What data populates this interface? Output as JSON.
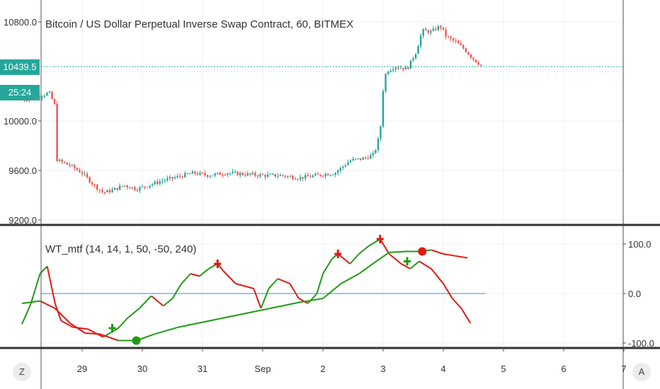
{
  "symbol_title": "Bitcoin / US Dollar Perpetual Inverse Swap Contract, 60, BITMEX",
  "indicator_title": "WT_mtf (14, 14, 1, 50, -50, 240)",
  "last_price_label": "10439.5",
  "countdown_label": "25:24",
  "corner_left_label": "Z",
  "corner_right_label": "A",
  "colors": {
    "up": "#26a69a",
    "down": "#ef5350",
    "wt_green": "#1e9b14",
    "wt_red": "#e01a14",
    "zero_line": "#90c8f0",
    "badge": "#26a69a"
  },
  "chart_data": [
    {
      "type": "candlestick",
      "title": "Bitcoin / US Dollar Perpetual Inverse Swap Contract, 60, BITMEX",
      "y_ticks": [
        "10800.0",
        "10000.0",
        "9600.0",
        "9200.0"
      ],
      "y_range": [
        9200,
        10800
      ],
      "x_ticks": [
        "29",
        "30",
        "31",
        "Sep",
        "2",
        "3",
        "4",
        "5",
        "6",
        "7"
      ],
      "last_price": 10439.5,
      "close_path": [
        [
          28.0,
          10170
        ],
        [
          28.3,
          10200
        ],
        [
          28.45,
          10230
        ],
        [
          28.55,
          10120
        ],
        [
          28.56,
          9700
        ],
        [
          28.6,
          9680
        ],
        [
          28.8,
          9640
        ],
        [
          29.0,
          9580
        ],
        [
          29.2,
          9480
        ],
        [
          29.35,
          9420
        ],
        [
          29.5,
          9440
        ],
        [
          29.7,
          9480
        ],
        [
          29.9,
          9450
        ],
        [
          30.1,
          9480
        ],
        [
          30.35,
          9520
        ],
        [
          30.6,
          9550
        ],
        [
          30.85,
          9580
        ],
        [
          31.1,
          9560
        ],
        [
          31.4,
          9580
        ],
        [
          31.7,
          9570
        ],
        [
          32.0,
          9560
        ],
        [
          32.3,
          9560
        ],
        [
          32.6,
          9540
        ],
        [
          32.9,
          9560
        ],
        [
          33.2,
          9580
        ],
        [
          33.45,
          9680
        ],
        [
          33.7,
          9700
        ],
        [
          33.85,
          9730
        ],
        [
          33.95,
          9900
        ],
        [
          34.0,
          10250
        ],
        [
          34.05,
          10400
        ],
        [
          34.2,
          10440
        ],
        [
          34.4,
          10420
        ],
        [
          34.55,
          10560
        ],
        [
          34.65,
          10730
        ],
        [
          34.8,
          10720
        ],
        [
          34.95,
          10770
        ],
        [
          35.05,
          10680
        ],
        [
          35.2,
          10640
        ],
        [
          35.35,
          10580
        ],
        [
          35.5,
          10500
        ],
        [
          35.65,
          10440
        ]
      ]
    },
    {
      "type": "line",
      "title": "WT_mtf (14, 14, 1, 50, -50, 240)",
      "y_ticks": [
        "100.0",
        "0.0",
        "-100.0"
      ],
      "y_range": [
        -100,
        100
      ],
      "reference_line": 0,
      "series": [
        {
          "color": "green/red",
          "points": [
            [
              28.0,
              -62
            ],
            [
              28.15,
              -20
            ],
            [
              28.3,
              40
            ],
            [
              28.42,
              55
            ],
            [
              28.55,
              -20
            ],
            [
              28.65,
              -55
            ],
            [
              28.85,
              -68
            ],
            [
              29.1,
              -72
            ],
            [
              29.35,
              -88
            ],
            [
              29.6,
              -70
            ],
            [
              29.75,
              -50
            ],
            [
              29.95,
              -30
            ],
            [
              30.15,
              -5
            ],
            [
              30.35,
              -25
            ],
            [
              30.5,
              -10
            ],
            [
              30.65,
              20
            ],
            [
              30.8,
              40
            ],
            [
              30.95,
              35
            ],
            [
              31.1,
              50
            ],
            [
              31.25,
              60
            ],
            [
              31.35,
              45
            ],
            [
              31.55,
              20
            ],
            [
              31.7,
              15
            ],
            [
              31.85,
              10
            ],
            [
              31.97,
              -30
            ],
            [
              32.1,
              10
            ],
            [
              32.25,
              30
            ],
            [
              32.45,
              20
            ],
            [
              32.6,
              -10
            ],
            [
              32.75,
              -20
            ],
            [
              32.9,
              0
            ],
            [
              33.0,
              40
            ],
            [
              33.15,
              70
            ],
            [
              33.25,
              80
            ],
            [
              33.45,
              60
            ],
            [
              33.6,
              80
            ],
            [
              33.75,
              95
            ],
            [
              33.95,
              110
            ],
            [
              34.1,
              80
            ],
            [
              34.3,
              60
            ],
            [
              34.45,
              50
            ],
            [
              34.6,
              65
            ],
            [
              34.8,
              50
            ],
            [
              35.0,
              20
            ],
            [
              35.15,
              -10
            ],
            [
              35.3,
              -30
            ],
            [
              35.45,
              -60
            ]
          ]
        },
        {
          "color": "green/red",
          "points": [
            [
              28.0,
              -20
            ],
            [
              28.3,
              -15
            ],
            [
              28.55,
              -30
            ],
            [
              28.8,
              -60
            ],
            [
              29.05,
              -80
            ],
            [
              29.3,
              -82
            ],
            [
              29.6,
              -95
            ],
            [
              29.9,
              -95
            ],
            [
              30.2,
              -82
            ],
            [
              30.6,
              -68
            ],
            [
              31.0,
              -58
            ],
            [
              31.4,
              -48
            ],
            [
              31.8,
              -38
            ],
            [
              32.2,
              -28
            ],
            [
              32.6,
              -18
            ],
            [
              33.0,
              -10
            ],
            [
              33.3,
              20
            ],
            [
              33.6,
              40
            ],
            [
              33.85,
              62
            ],
            [
              34.1,
              83
            ],
            [
              34.4,
              85
            ],
            [
              34.6,
              85
            ],
            [
              34.8,
              88
            ],
            [
              35.0,
              80
            ],
            [
              35.2,
              76
            ],
            [
              35.4,
              72
            ]
          ]
        }
      ],
      "signals": [
        {
          "type": "cross",
          "x": 29.5,
          "y": -70,
          "color": "#1e9b14"
        },
        {
          "type": "dot",
          "x": 29.9,
          "y": -95,
          "color": "#1e9b14"
        },
        {
          "type": "cross",
          "x": 31.25,
          "y": 60,
          "color": "#e01a14"
        },
        {
          "type": "cross",
          "x": 33.25,
          "y": 80,
          "color": "#e01a14"
        },
        {
          "type": "cross",
          "x": 33.95,
          "y": 110,
          "color": "#e01a14"
        },
        {
          "type": "cross",
          "x": 34.4,
          "y": 65,
          "color": "#1e9b14"
        },
        {
          "type": "dot",
          "x": 34.65,
          "y": 85,
          "color": "#e01a14"
        }
      ]
    }
  ]
}
